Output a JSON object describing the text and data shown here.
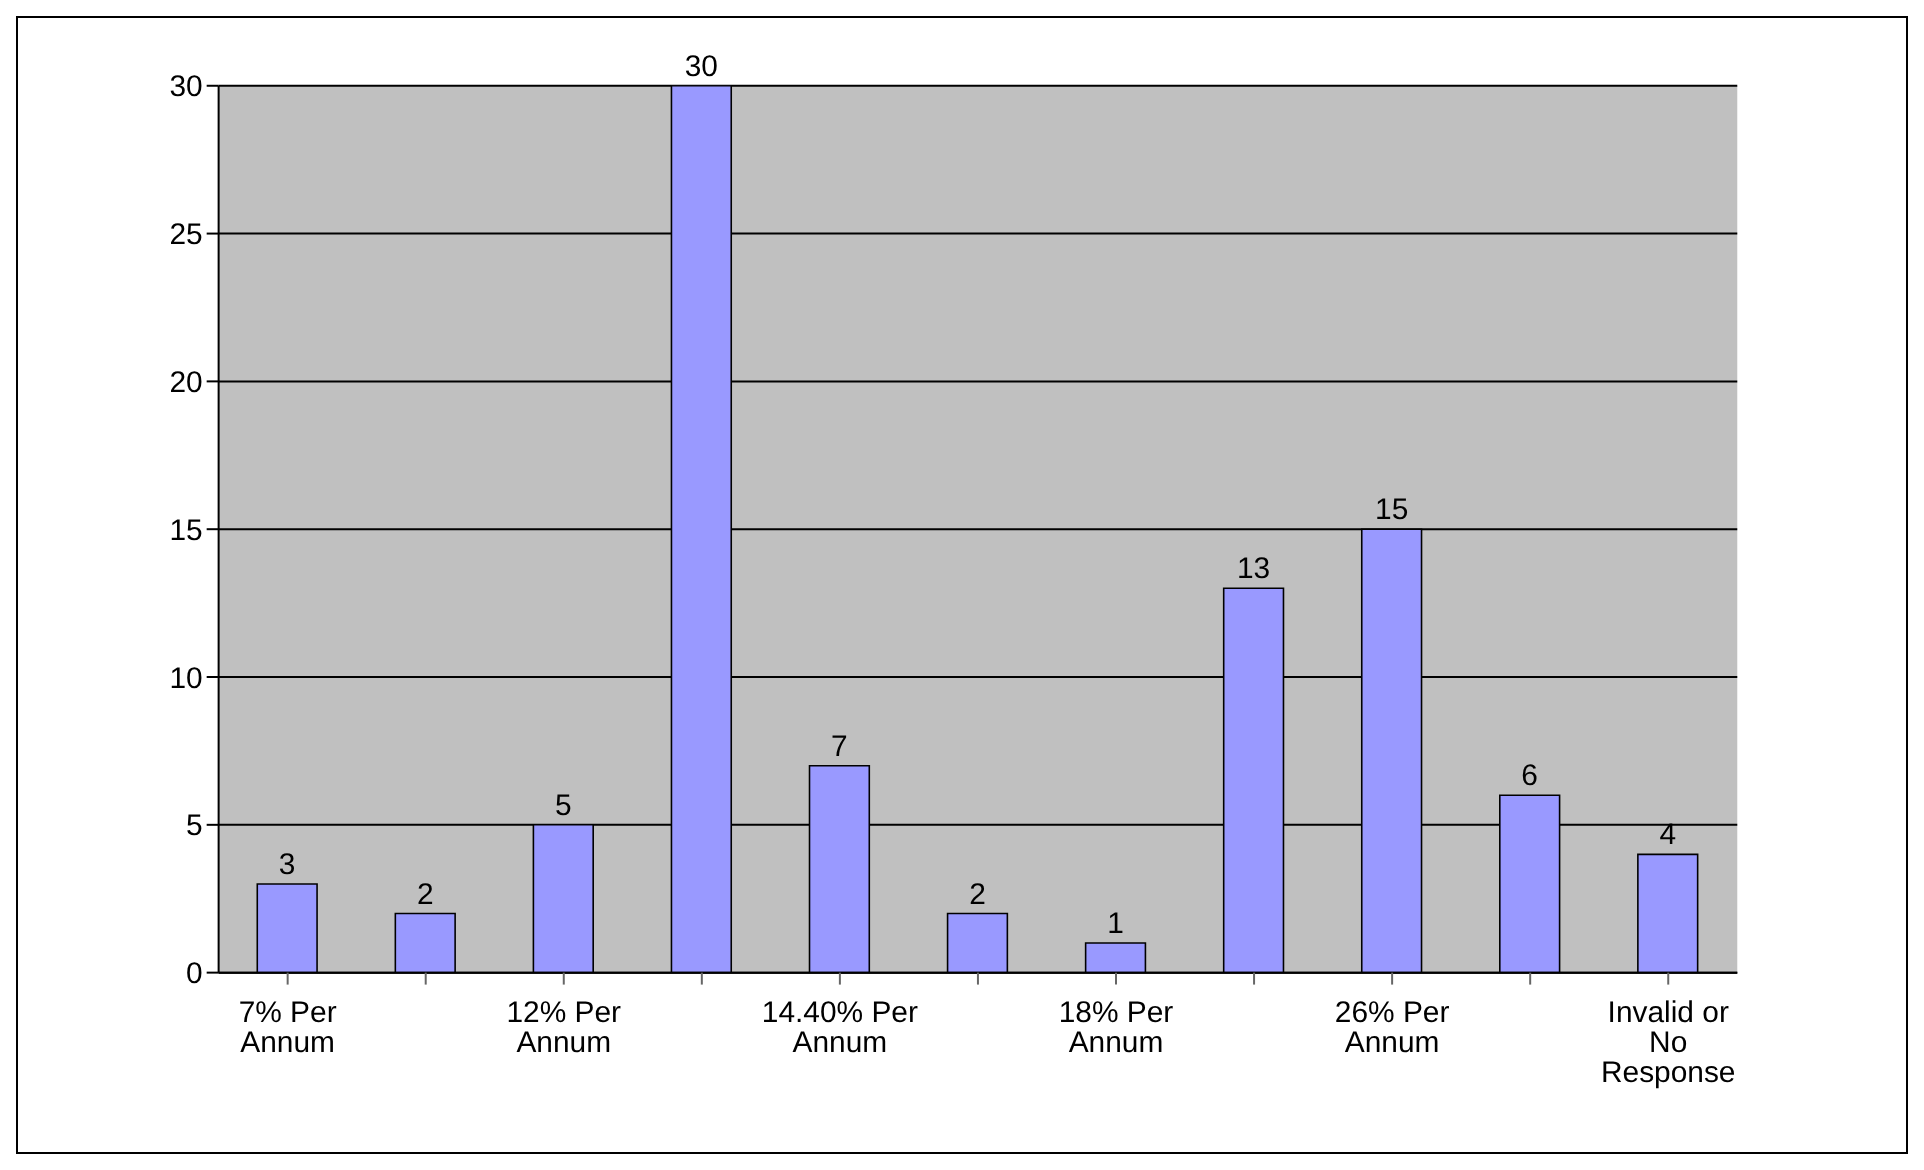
{
  "chart_data": {
    "type": "bar",
    "categories": [
      "7% Per Annum",
      null,
      "12% Per Annum",
      null,
      "14.40% Per Annum",
      null,
      "18% Per Annum",
      null,
      "26% Per Annum",
      null,
      "Invalid or No Response"
    ],
    "values": [
      3,
      2,
      5,
      30,
      7,
      2,
      1,
      13,
      15,
      6,
      4
    ],
    "color": "#9999ff",
    "ylim": [
      0,
      30
    ],
    "yticks": [
      0,
      5,
      10,
      15,
      20,
      25,
      30
    ],
    "grid": "y",
    "data_labels": true
  }
}
